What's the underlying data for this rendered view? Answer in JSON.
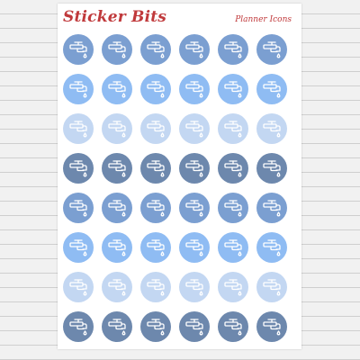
{
  "brand": "Sticker Bits",
  "subtitle": "Planner Icons",
  "icon_name": "water-faucet-icon",
  "colors": {
    "background": "#f1f1f1",
    "sheet": "#ffffff",
    "title_red": "#c0393b",
    "icon_stroke": "#ffffff"
  },
  "rows": [
    [
      "#7b9fd1",
      "#7b9fd1",
      "#7b9fd1",
      "#7b9fd1",
      "#7b9fd1",
      "#7b9fd1"
    ],
    [
      "#8fbcf3",
      "#8fbcf3",
      "#8fbcf3",
      "#8fbcf3",
      "#8fbcf3",
      "#8fbcf3"
    ],
    [
      "#c3d7f2",
      "#c3d7f2",
      "#c3d7f2",
      "#c3d7f2",
      "#c3d7f2",
      "#c3d7f2"
    ],
    [
      "#6d88ad",
      "#6d88ad",
      "#6d88ad",
      "#6d88ad",
      "#6d88ad",
      "#6d88ad"
    ],
    [
      "#7b9fd1",
      "#7b9fd1",
      "#7b9fd1",
      "#7b9fd1",
      "#7b9fd1",
      "#7b9fd1"
    ],
    [
      "#8fbcf3",
      "#8fbcf3",
      "#8fbcf3",
      "#8fbcf3",
      "#8fbcf3",
      "#8fbcf3"
    ],
    [
      "#c3d7f2",
      "#c3d7f2",
      "#c3d7f2",
      "#c3d7f2",
      "#c3d7f2",
      "#c3d7f2"
    ],
    [
      "#6d88ad",
      "#6d88ad",
      "#6d88ad",
      "#6d88ad",
      "#6d88ad",
      "#6d88ad"
    ]
  ]
}
